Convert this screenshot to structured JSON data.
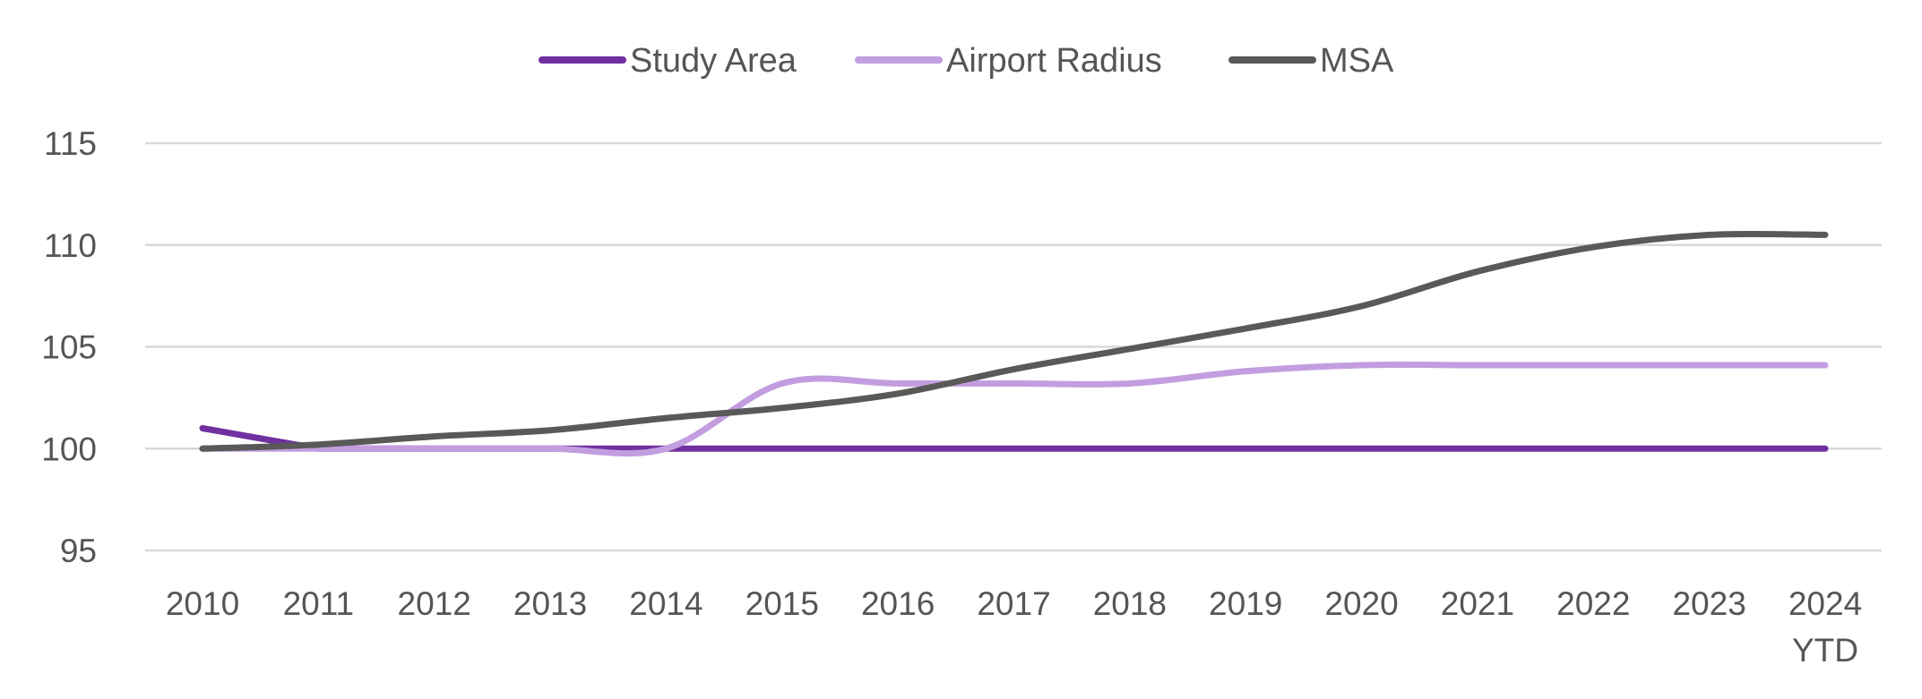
{
  "chart_data": {
    "type": "line",
    "title": "",
    "xlabel": "",
    "ylabel": "",
    "categories": [
      "2010",
      "2011",
      "2012",
      "2013",
      "2014",
      "2015",
      "2016",
      "2017",
      "2018",
      "2019",
      "2020",
      "2021",
      "2022",
      "2023",
      "2024 YTD"
    ],
    "category_lines": [
      [
        "2010"
      ],
      [
        "2011"
      ],
      [
        "2012"
      ],
      [
        "2013"
      ],
      [
        "2014"
      ],
      [
        "2015"
      ],
      [
        "2016"
      ],
      [
        "2017"
      ],
      [
        "2018"
      ],
      [
        "2019"
      ],
      [
        "2020"
      ],
      [
        "2021"
      ],
      [
        "2022"
      ],
      [
        "2023"
      ],
      [
        "2024",
        "YTD"
      ]
    ],
    "yticks": [
      95,
      100,
      105,
      110,
      115
    ],
    "ylim": [
      95,
      115
    ],
    "grid": true,
    "legend_position": "top",
    "series": [
      {
        "name": "Study Area",
        "color": "#7030A0",
        "smooth": false,
        "values": [
          101.0,
          100.0,
          100.0,
          100.0,
          100.0,
          100.0,
          100.0,
          100.0,
          100.0,
          100.0,
          100.0,
          100.0,
          100.0,
          100.0,
          100.0
        ]
      },
      {
        "name": "Airport Radius",
        "color": "#C29EE0",
        "smooth": true,
        "values": [
          100.0,
          100.0,
          100.0,
          100.0,
          100.0,
          103.2,
          103.2,
          103.2,
          103.2,
          103.8,
          104.1,
          104.1,
          104.1,
          104.1,
          104.1
        ]
      },
      {
        "name": "MSA",
        "color": "#595959",
        "smooth": true,
        "values": [
          100.0,
          100.2,
          100.6,
          100.9,
          101.5,
          102.0,
          102.7,
          103.9,
          104.9,
          105.9,
          107.0,
          108.7,
          109.9,
          110.5,
          110.5
        ]
      }
    ]
  }
}
